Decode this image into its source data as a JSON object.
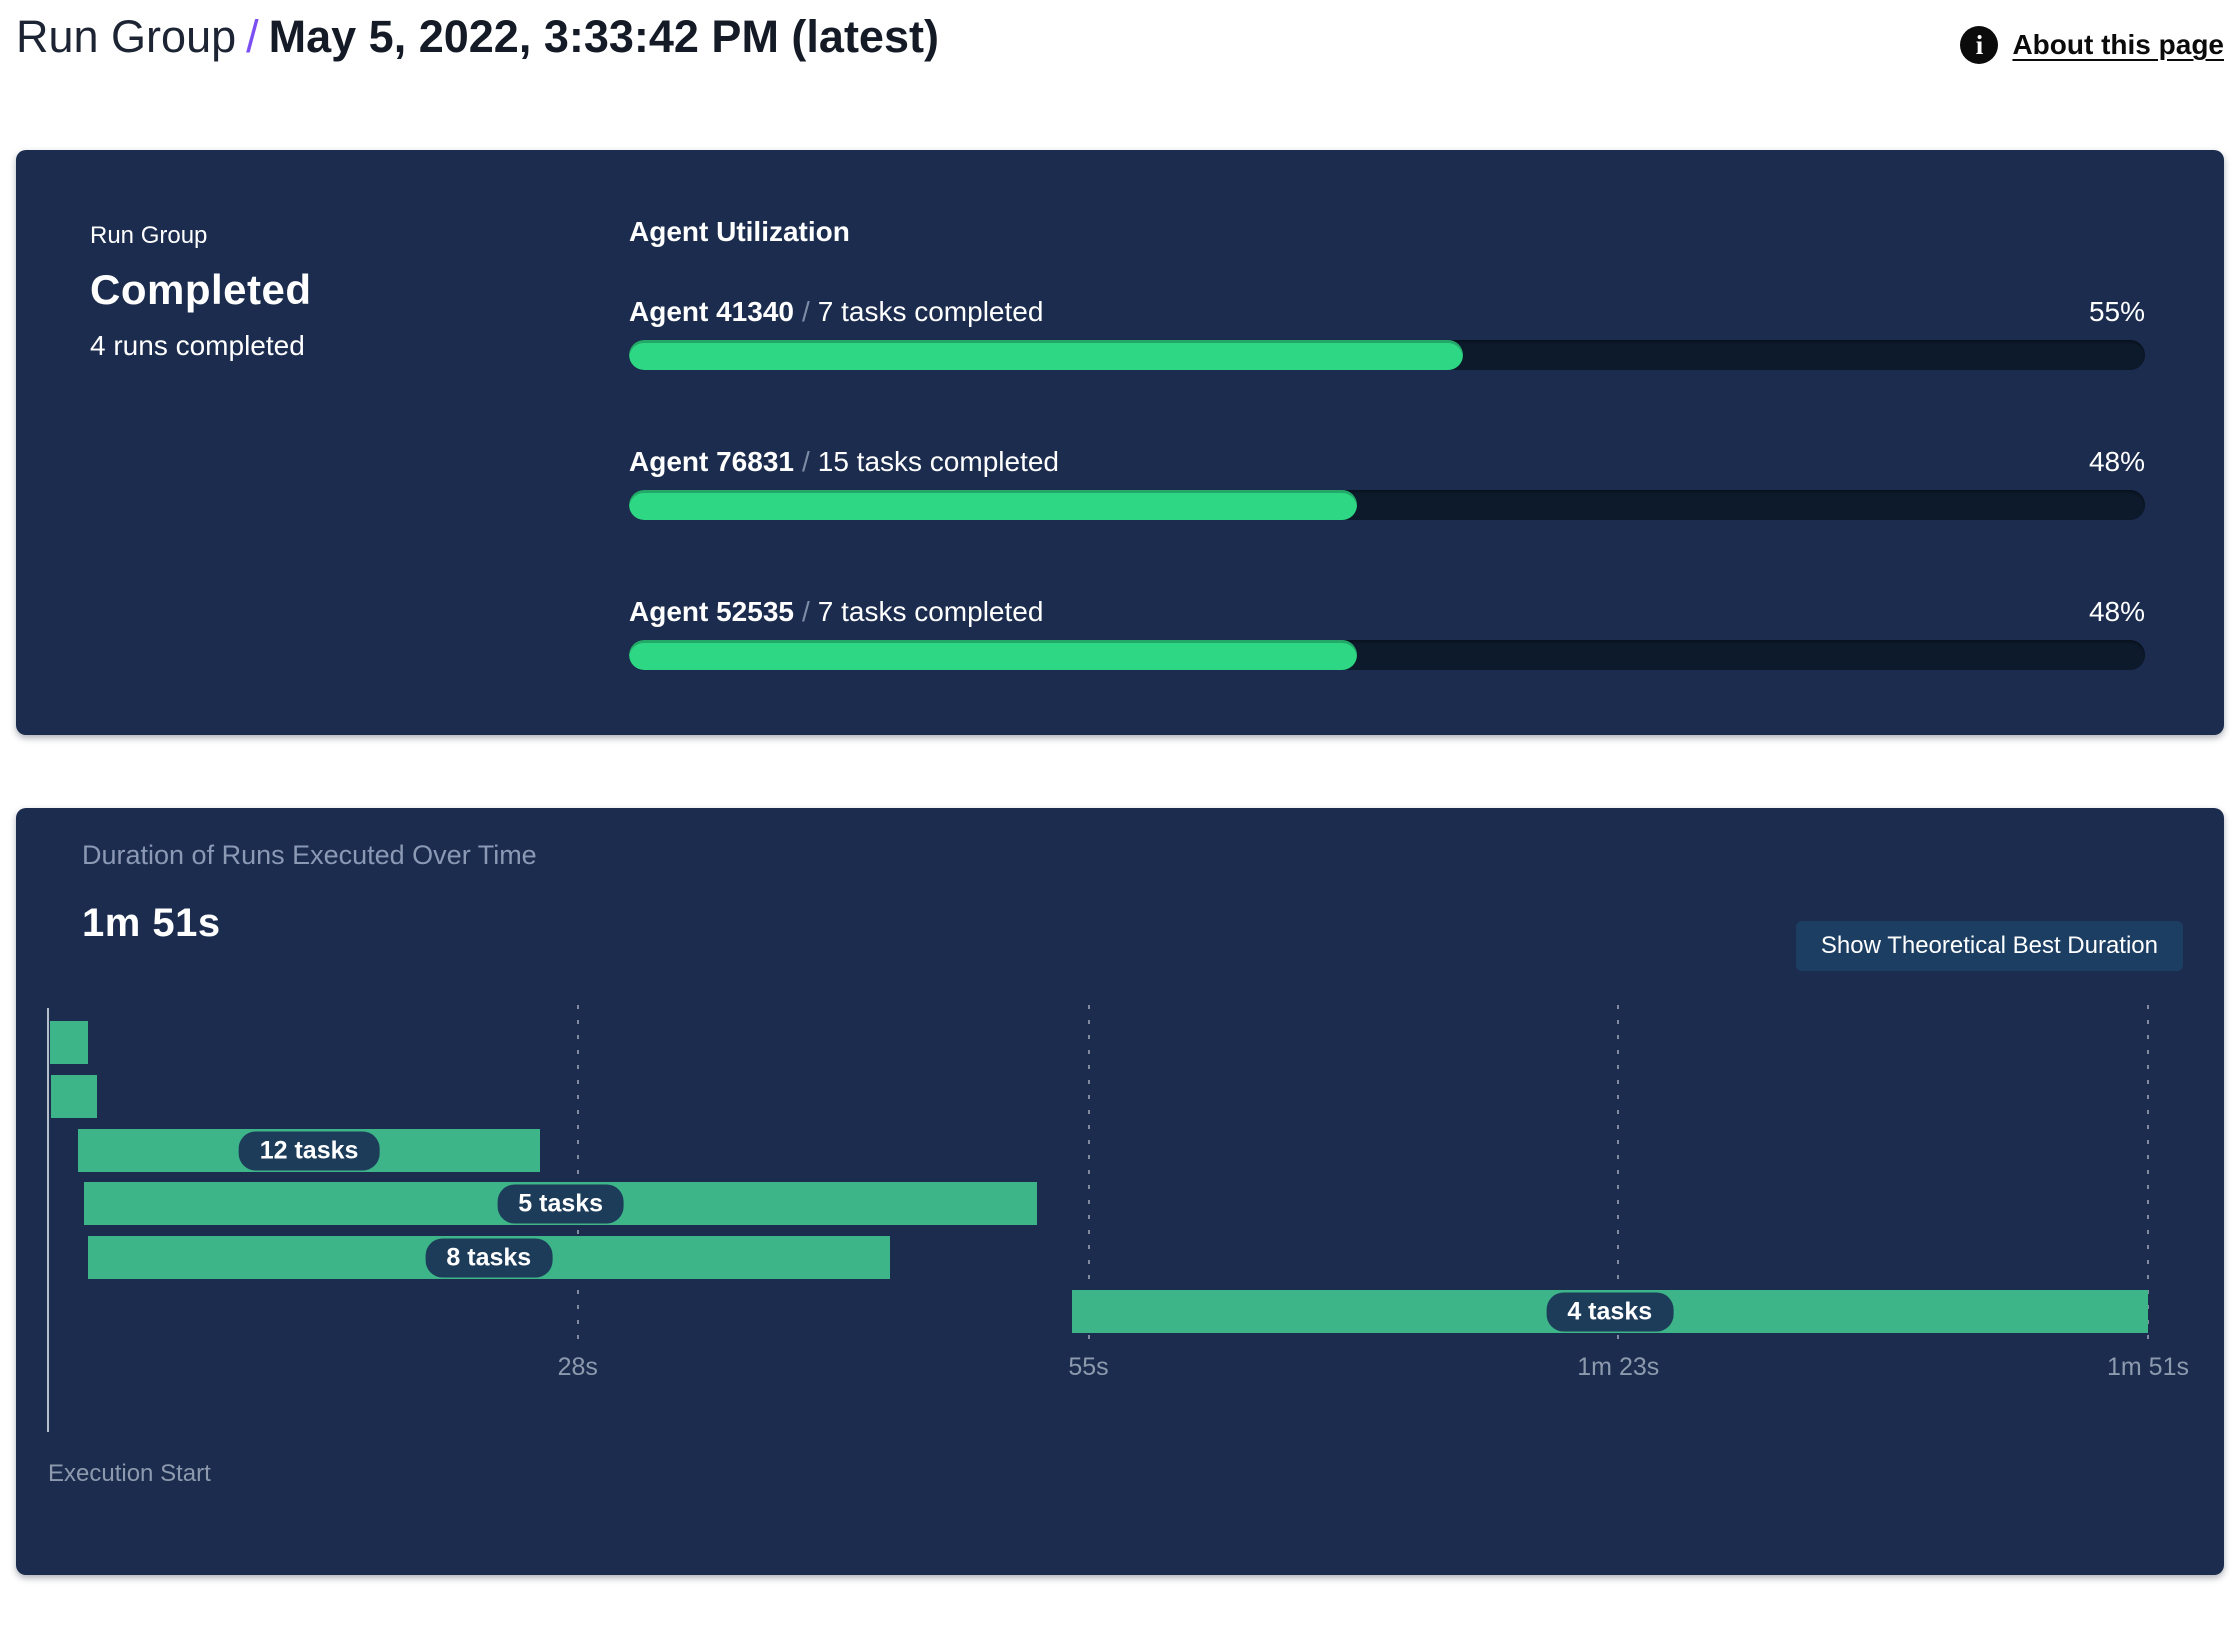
{
  "page": {
    "title_left": "Run Group",
    "title_sep": "/",
    "title_right": "May 5, 2022, 3:33:42 PM (latest)",
    "info_icon": "i",
    "about_link": "About this page"
  },
  "summary": {
    "label": "Run Group",
    "status": "Completed",
    "runs_completed": "4 runs completed"
  },
  "agent_utilization": {
    "title": "Agent Utilization",
    "separator": "/",
    "agents": [
      {
        "name": "Agent 41340",
        "tasks": "7 tasks completed",
        "percent": 55,
        "percent_label": "55%"
      },
      {
        "name": "Agent 76831",
        "tasks": "15 tasks completed",
        "percent": 48,
        "percent_label": "48%"
      },
      {
        "name": "Agent 52535",
        "tasks": "7 tasks completed",
        "percent": 48,
        "percent_label": "48%"
      }
    ]
  },
  "duration_card": {
    "subtitle": "Duration of Runs Executed Over Time",
    "total_duration": "1m 51s",
    "button_label": "Show Theoretical Best Duration",
    "execution_start_label": "Execution Start"
  },
  "chart_data": {
    "type": "gantt",
    "title": "Duration of Runs Executed Over Time",
    "unit": "seconds",
    "xlim": [
      0,
      111
    ],
    "grid": "dashed-vertical",
    "x_ticks": [
      {
        "t": 28,
        "label": "28s"
      },
      {
        "t": 55,
        "label": "55s"
      },
      {
        "t": 83,
        "label": "1m 23s"
      },
      {
        "t": 111,
        "label": "1m 51s"
      }
    ],
    "runs": [
      {
        "start": 0.1,
        "end": 2.1,
        "label": ""
      },
      {
        "start": 0.15,
        "end": 2.6,
        "label": ""
      },
      {
        "start": 1.6,
        "end": 26.0,
        "label": "12 tasks"
      },
      {
        "start": 1.9,
        "end": 52.3,
        "label": "5 tasks"
      },
      {
        "start": 2.1,
        "end": 44.5,
        "label": "8 tasks"
      },
      {
        "start": 54.1,
        "end": 111.0,
        "label": "4 tasks"
      }
    ],
    "colors": {
      "bar": "#3eb489",
      "badge_bg": "#1d3c5a",
      "progress_fill": "#2ed784",
      "progress_track": "#0d1a2b",
      "card_bg": "#1b2c4e",
      "accent_slash": "#7b4ff2"
    }
  }
}
